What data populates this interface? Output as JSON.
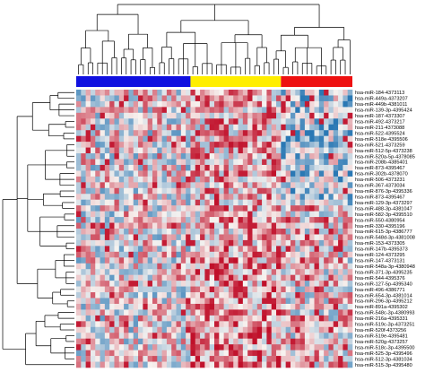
{
  "chart_data": {
    "type": "heatmap",
    "title": "",
    "xlabel": "",
    "ylabel": "",
    "n_columns": 58,
    "column_groups": [
      {
        "color": "#1010e0",
        "count": 24
      },
      {
        "color": "#ffee00",
        "count": 19
      },
      {
        "color": "#ee1111",
        "count": 15
      }
    ],
    "color_scale": {
      "low": "#2a78b4",
      "mid": "#f7f3f0",
      "high": "#c0102a"
    },
    "value_range": [
      -1,
      1
    ],
    "row_labels": [
      "hsa-miR-184-4373113",
      "hsa-miR-449a-4373207",
      "hsa-miR-449b-4381011",
      "hsa-miR-139-3p-4395424",
      "hsa-miR-187-4373307",
      "hsa-miR-492-4373217",
      "hsa-miR-211-4373088",
      "hsa-miR-522-4395524",
      "hsa-miR-518e-4395506",
      "hsa-miR-521-4373259",
      "hsa-miR-512-5p-4373238",
      "hsa-miR-520a-5p-4378085",
      "hsa-miR-208b-4385401",
      "hsa-miR-873-4395467",
      "hsa-miR-302b-4378070",
      "hsa-miR-506-4373231",
      "hsa-miR-367-4373034",
      "hsa-miR-876-3p-4395336",
      "hsa-miR-873-4395467",
      "hsa-miR-129-3p-4373297",
      "hsa-miR-488-3p-4381047",
      "hsa-miR-582-3p-4395510",
      "hsa-miR-550-4380954",
      "hsa-miR-330-4395196",
      "hsa-miR-615-3p-4386777",
      "hsa-miR-548d-3p-4381008",
      "hsa-miR-153-4373305",
      "hsa-miR-147b-4395373",
      "hsa-miR-124-4373295",
      "hsa-miR-147-4373131",
      "hsa-miR-548a-3p-4380948",
      "hsa-miR-371-3p-4395235",
      "hsa-miR-544-4395376",
      "hsa-miR-127-5p-4395340",
      "hsa-miR-496-4386771",
      "hsa-miR-654-3p-4381014",
      "hsa-miR-296-3p-4395212",
      "hsa-miR-891a-4395302",
      "hsa-miR-548c-3p-4380993",
      "hsa-miR-216a-4395331",
      "hsa-miR-519c-3p-4373251",
      "hsa-miR-520f-4373256",
      "hsa-miR-519e-4395481",
      "hsa-miR-520g-4373257",
      "hsa-miR-518c-3p-4395500",
      "hsa-miR-525-3p-4395496",
      "hsa-miR-512-3p-4381034",
      "hsa-miR-515-3p-4395480"
    ],
    "value_seed": 7
  }
}
